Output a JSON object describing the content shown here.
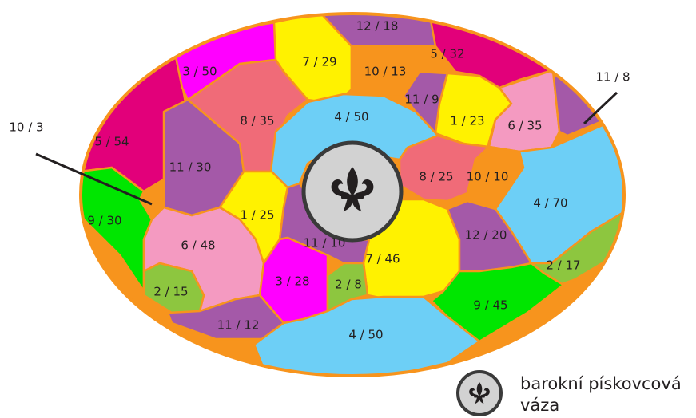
{
  "regions": [
    {
      "label": "5 / 54",
      "color": "#e2007a"
    },
    {
      "label": "3 / 50",
      "color": "#ff00ff"
    },
    {
      "label": "7 / 29",
      "color": "#fff200"
    },
    {
      "label": "12 / 18",
      "color": "#a459a8"
    },
    {
      "label": "5 / 32",
      "color": "#e2007a"
    },
    {
      "label": "10 / 13",
      "color": "#f7941d"
    },
    {
      "label": "11 / 9",
      "color": "#a459a8"
    },
    {
      "label": "1 / 23",
      "color": "#fff200"
    },
    {
      "label": "6 / 35",
      "color": "#f49ac1"
    },
    {
      "label": "11 / 8",
      "color": "#a459a8"
    },
    {
      "label": "8 / 35",
      "color": "#f06b78"
    },
    {
      "label": "4 / 50",
      "color": "#6dcff6"
    },
    {
      "label": "11 / 30",
      "color": "#a459a8"
    },
    {
      "label": "8 / 25",
      "color": "#f06b78"
    },
    {
      "label": "10 / 10",
      "color": "#f7941d"
    },
    {
      "label": "4 / 70",
      "color": "#6dcff6"
    },
    {
      "label": "10 / 3",
      "color": "#f7941d"
    },
    {
      "label": "9 / 30",
      "color": "#00e600"
    },
    {
      "label": "1 / 25",
      "color": "#fff200"
    },
    {
      "label": "6 / 48",
      "color": "#f49ac1"
    },
    {
      "label": "11 / 10",
      "color": "#a459a8"
    },
    {
      "label": "7 / 46",
      "color": "#fff200"
    },
    {
      "label": "12 / 20",
      "color": "#a459a8"
    },
    {
      "label": "2 / 17",
      "color": "#8dc63f"
    },
    {
      "label": "3 / 28",
      "color": "#ff00ff"
    },
    {
      "label": "2 / 8",
      "color": "#8dc63f"
    },
    {
      "label": "2 / 15",
      "color": "#8dc63f"
    },
    {
      "label": "9 / 45",
      "color": "#00e600"
    },
    {
      "label": "11 / 12",
      "color": "#a459a8"
    },
    {
      "label": "4 / 50",
      "color": "#6dcff6"
    }
  ],
  "legend": {
    "lines": [
      "barokní pískovcová",
      "váza"
    ]
  }
}
